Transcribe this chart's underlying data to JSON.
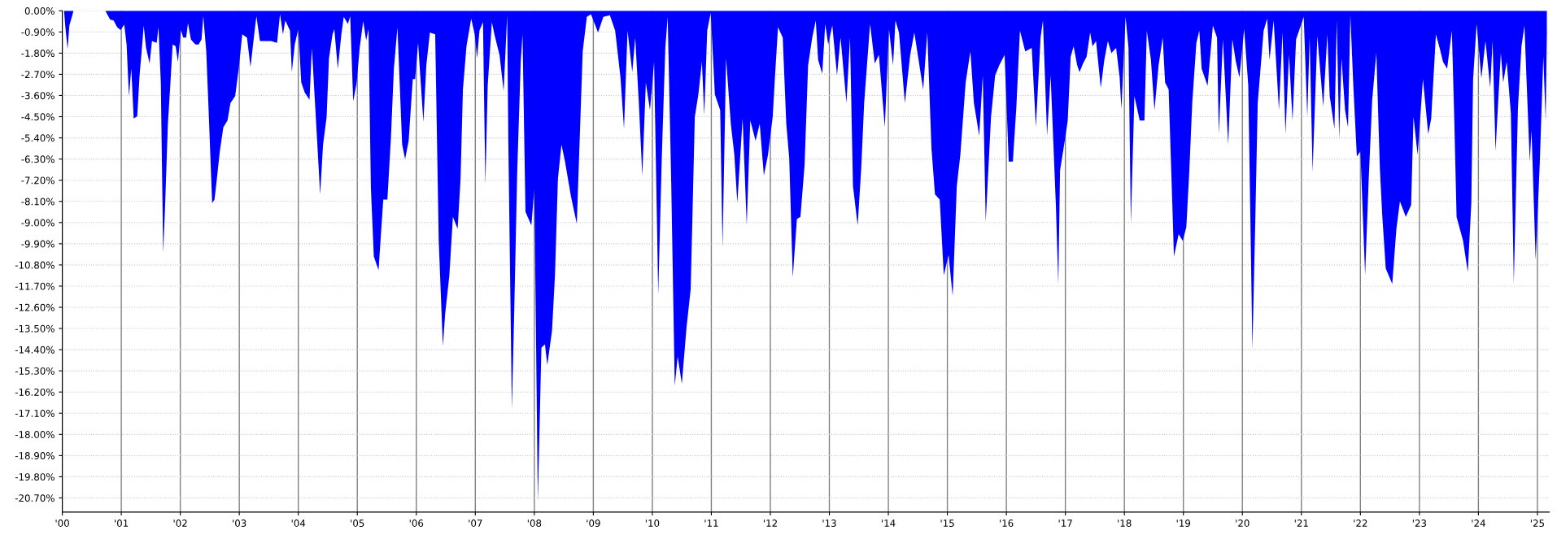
{
  "chart_data": {
    "type": "area",
    "xlim": [
      2000,
      2025.2
    ],
    "ylim": [
      -21.3,
      0
    ],
    "xticks": [
      {
        "value": 2000,
        "label": "'00"
      },
      {
        "value": 2001,
        "label": "'01"
      },
      {
        "value": 2002,
        "label": "'02"
      },
      {
        "value": 2003,
        "label": "'03"
      },
      {
        "value": 2004,
        "label": "'04"
      },
      {
        "value": 2005,
        "label": "'05"
      },
      {
        "value": 2006,
        "label": "'06"
      },
      {
        "value": 2007,
        "label": "'07"
      },
      {
        "value": 2008,
        "label": "'08"
      },
      {
        "value": 2009,
        "label": "'09"
      },
      {
        "value": 2010,
        "label": "'10"
      },
      {
        "value": 2011,
        "label": "'11"
      },
      {
        "value": 2012,
        "label": "'12"
      },
      {
        "value": 2013,
        "label": "'13"
      },
      {
        "value": 2014,
        "label": "'14"
      },
      {
        "value": 2015,
        "label": "'15"
      },
      {
        "value": 2016,
        "label": "'16"
      },
      {
        "value": 2017,
        "label": "'17"
      },
      {
        "value": 2018,
        "label": "'18"
      },
      {
        "value": 2019,
        "label": "'19"
      },
      {
        "value": 2020,
        "label": "'20"
      },
      {
        "value": 2021,
        "label": "'21"
      },
      {
        "value": 2022,
        "label": "'22"
      },
      {
        "value": 2023,
        "label": "'23"
      },
      {
        "value": 2024,
        "label": "'24"
      },
      {
        "value": 2025,
        "label": "'25"
      }
    ],
    "yticks": [
      {
        "value": 0,
        "label": "0.00%"
      },
      {
        "value": -0.9,
        "label": "-0.90%"
      },
      {
        "value": -1.8,
        "label": "-1.80%"
      },
      {
        "value": -2.7,
        "label": "-2.70%"
      },
      {
        "value": -3.6,
        "label": "-3.60%"
      },
      {
        "value": -4.5,
        "label": "-4.50%"
      },
      {
        "value": -5.4,
        "label": "-5.40%"
      },
      {
        "value": -6.3,
        "label": "-6.30%"
      },
      {
        "value": -7.2,
        "label": "-7.20%"
      },
      {
        "value": -8.1,
        "label": "-8.10%"
      },
      {
        "value": -9.0,
        "label": "-9.00%"
      },
      {
        "value": -9.9,
        "label": "-9.90%"
      },
      {
        "value": -10.8,
        "label": "-10.80%"
      },
      {
        "value": -11.7,
        "label": "-11.70%"
      },
      {
        "value": -12.6,
        "label": "-12.60%"
      },
      {
        "value": -13.5,
        "label": "-13.50%"
      },
      {
        "value": -14.4,
        "label": "-14.40%"
      },
      {
        "value": -15.3,
        "label": "-15.30%"
      },
      {
        "value": -16.2,
        "label": "-16.20%"
      },
      {
        "value": -17.1,
        "label": "-17.10%"
      },
      {
        "value": -18.0,
        "label": "-18.00%"
      },
      {
        "value": -18.9,
        "label": "-18.90%"
      },
      {
        "value": -19.8,
        "label": "-19.80%"
      },
      {
        "value": -20.7,
        "label": "-20.70%"
      }
    ],
    "grid": true,
    "series": [
      {
        "color": "#0000ff",
        "x": [
          2000.03,
          2000.05,
          2000.09,
          2000.12,
          2000.17,
          2000.19,
          2000.73,
          2000.81,
          2000.87,
          2000.93,
          2000.99,
          2001.05,
          2001.09,
          2001.13,
          2001.17,
          2001.21,
          2001.27,
          2001.31,
          2001.35,
          2001.38,
          2001.42,
          2001.48,
          2001.52,
          2001.6,
          2001.63,
          2001.67,
          2001.71,
          2001.74,
          2001.79,
          2001.83,
          2001.87,
          2001.92,
          2001.96,
          2002.01,
          2002.05,
          2002.1,
          2002.13,
          2002.18,
          2002.23,
          2002.26,
          2002.31,
          2002.36,
          2002.39,
          2002.44,
          2002.48,
          2002.54,
          2002.58,
          2002.62,
          2002.67,
          2002.73,
          2002.8,
          2002.85,
          2002.93,
          2002.99,
          2003.05,
          2003.13,
          2003.19,
          2003.26,
          2003.29,
          2003.35,
          2003.45,
          2003.54,
          2003.64,
          2003.69,
          2003.74,
          2003.78,
          2003.86,
          2003.89,
          2003.94,
          2004.0,
          2004.05,
          2004.11,
          2004.19,
          2004.23,
          2004.3,
          2004.37,
          2004.42,
          2004.48,
          2004.52,
          2004.58,
          2004.61,
          2004.67,
          2004.73,
          2004.77,
          2004.84,
          2004.88,
          2004.93,
          2004.99,
          2005.04,
          2005.1,
          2005.15,
          2005.19,
          2005.23,
          2005.28,
          2005.36,
          2005.44,
          2005.51,
          2005.57,
          2005.62,
          2005.68,
          2005.76,
          2005.81,
          2005.87,
          2005.94,
          2005.98,
          2006.03,
          2006.12,
          2006.17,
          2006.23,
          2006.32,
          2006.38,
          2006.45,
          2006.49,
          2006.56,
          2006.62,
          2006.7,
          2006.75,
          2006.79,
          2006.85,
          2006.93,
          2006.99,
          2007.03,
          2007.07,
          2007.13,
          2007.17,
          2007.21,
          2007.28,
          2007.33,
          2007.41,
          2007.48,
          2007.54,
          2007.56,
          2007.62,
          2007.66,
          2007.71,
          2007.77,
          2007.8,
          2007.85,
          2007.95,
          2008.0,
          2008.06,
          2008.12,
          2008.18,
          2008.22,
          2008.3,
          2008.35,
          2008.4,
          2008.46,
          2008.52,
          2008.62,
          2008.72,
          2008.77,
          2008.82,
          2008.89,
          2008.96,
          2009.08,
          2009.17,
          2009.28,
          2009.37,
          2009.46,
          2009.52,
          2009.58,
          2009.66,
          2009.71,
          2009.77,
          2009.83,
          2009.89,
          2009.96,
          2010.03,
          2010.1,
          2010.16,
          2010.22,
          2010.26,
          2010.32,
          2010.38,
          2010.43,
          2010.5,
          2010.58,
          2010.65,
          2010.72,
          2010.78,
          2010.84,
          2010.88,
          2010.93,
          2010.99,
          2011.06,
          2011.15,
          2011.19,
          2011.25,
          2011.33,
          2011.39,
          2011.44,
          2011.53,
          2011.6,
          2011.66,
          2011.75,
          2011.82,
          2011.89,
          2011.96,
          2012.04,
          2012.08,
          2012.13,
          2012.21,
          2012.27,
          2012.32,
          2012.38,
          2012.45,
          2012.51,
          2012.58,
          2012.64,
          2012.71,
          2012.77,
          2012.81,
          2012.88,
          2012.93,
          2012.98,
          2013.05,
          2013.13,
          2013.19,
          2013.29,
          2013.35,
          2013.4,
          2013.48,
          2013.54,
          2013.59,
          2013.69,
          2013.77,
          2013.84,
          2013.94,
          2014.01,
          2014.08,
          2014.12,
          2014.18,
          2014.28,
          2014.37,
          2014.44,
          2014.59,
          2014.66,
          2014.73,
          2014.79,
          2014.87,
          2014.94,
          2015.02,
          2015.09,
          2015.16,
          2015.22,
          2015.31,
          2015.39,
          2015.45,
          2015.54,
          2015.6,
          2015.65,
          2015.74,
          2015.81,
          2015.88,
          2015.97,
          2016.04,
          2016.11,
          2016.17,
          2016.23,
          2016.32,
          2016.43,
          2016.5,
          2016.58,
          2016.62,
          2016.69,
          2016.75,
          2016.84,
          2016.88,
          2016.91,
          2016.98,
          2017.04,
          2017.09,
          2017.14,
          2017.2,
          2017.24,
          2017.3,
          2017.36,
          2017.42,
          2017.46,
          2017.52,
          2017.6,
          2017.66,
          2017.72,
          2017.78,
          2017.86,
          2017.92,
          2017.95,
          2018.02,
          2018.07,
          2018.11,
          2018.17,
          2018.26,
          2018.34,
          2018.38,
          2018.45,
          2018.51,
          2018.58,
          2018.65,
          2018.69,
          2018.75,
          2018.81,
          2018.84,
          2018.92,
          2018.99,
          2019.05,
          2019.1,
          2019.15,
          2019.22,
          2019.27,
          2019.31,
          2019.41,
          2019.5,
          2019.57,
          2019.6,
          2019.67,
          2019.76,
          2019.83,
          2019.89,
          2019.95,
          2020.03,
          2020.1,
          2020.17,
          2020.22,
          2020.26,
          2020.36,
          2020.42,
          2020.46,
          2020.53,
          2020.62,
          2020.68,
          2020.73,
          2020.79,
          2020.85,
          2020.91,
          2021.04,
          2021.1,
          2021.14,
          2021.19,
          2021.27,
          2021.37,
          2021.44,
          2021.48,
          2021.56,
          2021.6,
          2021.64,
          2021.68,
          2021.74,
          2021.79,
          2021.83,
          2021.88,
          2021.94,
          2022.0,
          2022.08,
          2022.14,
          2022.2,
          2022.27,
          2022.33,
          2022.37,
          2022.43,
          2022.54,
          2022.61,
          2022.67,
          2022.77,
          2022.86,
          2022.9,
          2022.97,
          2023.06,
          2023.15,
          2023.2,
          2023.28,
          2023.35,
          2023.4,
          2023.47,
          2023.55,
          2023.59,
          2023.63,
          2023.74,
          2023.82,
          2023.88,
          2023.91,
          2023.97,
          2024.05,
          2024.12,
          2024.2,
          2024.24,
          2024.29,
          2024.38,
          2024.42,
          2024.48,
          2024.55,
          2024.6,
          2024.67,
          2024.73,
          2024.78,
          2024.87,
          2024.9,
          2024.97,
          2025.04,
          2025.1,
          2025.14,
          2025.16
        ],
        "values": [
          0,
          -0.63,
          -1.63,
          -0.63,
          -0.19,
          0,
          0,
          -0.37,
          -0.41,
          -0.7,
          -0.82,
          -0.59,
          -1.43,
          -3.63,
          -2.46,
          -4.58,
          -4.48,
          -2.75,
          -1.58,
          -0.63,
          -1.58,
          -2.24,
          -1.29,
          -1.36,
          -0.7,
          -3.05,
          -10.29,
          -8.46,
          -4.8,
          -3.19,
          -1.43,
          -1.5,
          -2.17,
          -0.82,
          -1.14,
          -1.14,
          -0.53,
          -1.22,
          -1.36,
          -1.43,
          -1.43,
          -1.22,
          -0.23,
          -1.73,
          -4.22,
          -8.17,
          -8.02,
          -7.14,
          -5.97,
          -4.95,
          -4.66,
          -3.92,
          -3.63,
          -2.46,
          -1.0,
          -1.14,
          -2.39,
          -0.85,
          -0.23,
          -1.29,
          -1.29,
          -1.29,
          -1.36,
          -0.15,
          -1.0,
          -0.41,
          -0.85,
          -2.61,
          -1.43,
          -0.78,
          -3.05,
          -3.48,
          -3.78,
          -1.58,
          -4.66,
          -7.8,
          -5.68,
          -4.51,
          -2.02,
          -1.0,
          -0.78,
          -2.46,
          -1.0,
          -0.26,
          -0.56,
          -0.23,
          -3.85,
          -3.05,
          -1.58,
          -0.44,
          -1.26,
          -0.78,
          -7.51,
          -10.44,
          -11.02,
          -8.02,
          -8.02,
          -5.39,
          -2.46,
          -0.7,
          -5.68,
          -6.3,
          -5.53,
          -2.9,
          -2.9,
          -1.36,
          -4.73,
          -2.31,
          -0.92,
          -1.0,
          -9.78,
          -14.25,
          -12.85,
          -11.24,
          -8.76,
          -9.27,
          -7.14,
          -3.34,
          -1.51,
          -0.34,
          -1.0,
          -2.02,
          -0.85,
          -0.48,
          -7.39,
          -3.19,
          -0.48,
          -1.07,
          -1.87,
          -3.41,
          -0.19,
          -5.68,
          -16.93,
          -12.71,
          -6.85,
          -2.17,
          -1.0,
          -8.54,
          -9.12,
          -7.58,
          -20.83,
          -14.32,
          -14.17,
          -15.05,
          -13.59,
          -11.24,
          -7.14,
          -5.68,
          -6.41,
          -7.88,
          -9.05,
          -5.39,
          -1.73,
          -0.26,
          -0.15,
          -0.92,
          -0.26,
          -0.19,
          -0.85,
          -2.83,
          -5.02,
          -0.85,
          -2.61,
          -1.14,
          -3.85,
          -7.0,
          -3.05,
          -4.22,
          -2.17,
          -12.05,
          -6.27,
          -1.58,
          -0.26,
          -7.29,
          -15.93,
          -14.69,
          -15.86,
          -13.44,
          -11.83,
          -4.51,
          -3.56,
          -2.17,
          -4.44,
          -0.85,
          -0.09,
          -3.56,
          -4.22,
          -10.07,
          -2.02,
          -4.8,
          -6.12,
          -8.17,
          -4.58,
          -9.12,
          -4.66,
          -5.53,
          -4.8,
          -7.0,
          -6.12,
          -4.51,
          -2.75,
          -0.7,
          -1.14,
          -4.8,
          -6.27,
          -11.32,
          -8.85,
          -8.76,
          -6.56,
          -2.31,
          -1.14,
          -0.41,
          -2.09,
          -2.68,
          -0.56,
          -1.43,
          -0.63,
          -2.75,
          -1.14,
          -3.92,
          -1.14,
          -7.44,
          -9.12,
          -6.71,
          -3.92,
          -0.56,
          -2.24,
          -1.87,
          -4.95,
          -0.78,
          -2.31,
          -0.41,
          -0.92,
          -3.92,
          -1.87,
          -0.92,
          -3.34,
          -0.92,
          -5.83,
          -7.8,
          -8.02,
          -11.24,
          -10.37,
          -12.12,
          -7.44,
          -6.12,
          -3.05,
          -1.73,
          -3.92,
          -5.31,
          -2.75,
          -8.97,
          -4.51,
          -2.75,
          -2.31,
          -1.87,
          -6.41,
          -6.41,
          -4.07,
          -0.85,
          -1.73,
          -1.58,
          -4.95,
          -1.14,
          -0.41,
          -5.31,
          -2.75,
          -8.32,
          -11.61,
          -6.78,
          -5.68,
          -4.66,
          -1.95,
          -1.51,
          -2.31,
          -2.61,
          -2.24,
          -1.95,
          -0.92,
          -1.51,
          -1.29,
          -3.27,
          -2.09,
          -1.29,
          -1.8,
          -1.58,
          -2.83,
          -4.19,
          -0.26,
          -1.58,
          -9.05,
          -3.63,
          -4.66,
          -4.66,
          -0.85,
          -2.09,
          -4.22,
          -2.31,
          -1.14,
          -3.05,
          -3.34,
          -8.02,
          -10.44,
          -9.49,
          -9.78,
          -9.19,
          -6.85,
          -3.92,
          -1.36,
          -0.85,
          -2.46,
          -3.19,
          -0.63,
          -1.14,
          -5.24,
          -1.22,
          -5.68,
          -1.22,
          -2.17,
          -2.83,
          -0.78,
          -3.19,
          -14.39,
          -8.76,
          -3.92,
          -0.85,
          -0.34,
          -2.09,
          -0.41,
          -4.22,
          -0.92,
          -5.24,
          -1.87,
          -4.66,
          -1.22,
          -0.26,
          -4.51,
          -1.14,
          -6.85,
          -1.07,
          -4.07,
          -1.0,
          -3.63,
          -5.02,
          -0.41,
          -5.46,
          -2.02,
          -4.22,
          -4.95,
          -0.19,
          -3.19,
          -6.19,
          -5.97,
          -11.24,
          -7.22,
          -3.78,
          -1.8,
          -6.71,
          -8.68,
          -10.95,
          -11.61,
          -9.27,
          -8.1,
          -8.76,
          -8.25,
          -4.51,
          -6.12,
          -2.9,
          -5.24,
          -4.58,
          -1.0,
          -1.65,
          -2.17,
          -2.46,
          -0.85,
          -4.51,
          -8.76,
          -9.78,
          -11.1,
          -8.17,
          -2.9,
          -0.56,
          -2.87,
          -1.29,
          -3.27,
          -1.29,
          -5.97,
          -1.8,
          -3.05,
          -2.17,
          -4.36,
          -11.61,
          -4.14,
          -1.51,
          -0.63,
          -6.41,
          -5.09,
          -10.59,
          -6.48,
          -1.95,
          -4.66,
          -1.0
        ]
      }
    ]
  }
}
